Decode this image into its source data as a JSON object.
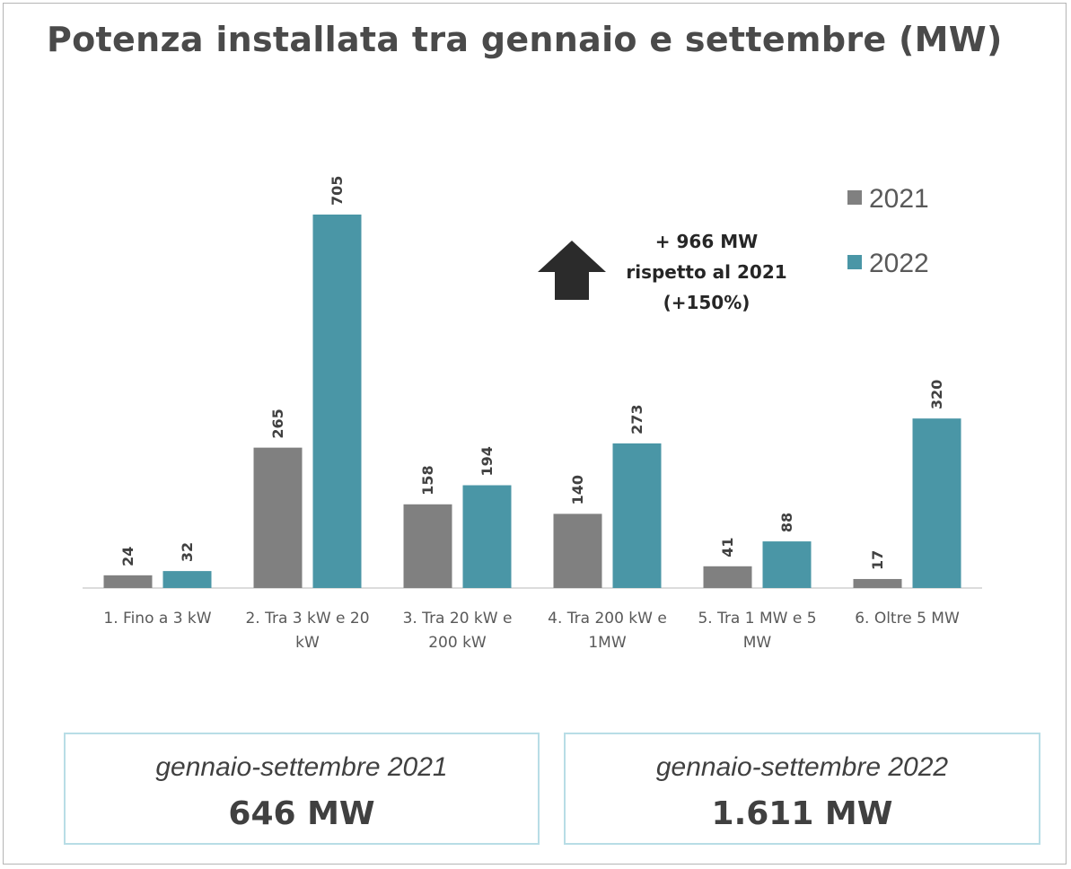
{
  "chart_data": {
    "type": "bar",
    "title": "Potenza installata tra gennaio e settembre (MW)",
    "xlabel": "",
    "ylabel": "",
    "ylim": [
      0,
      705
    ],
    "grid": false,
    "legend_position": "top-right",
    "categories": [
      [
        "1. Fino a 3 kW"
      ],
      [
        "2. Tra 3 kW e 20",
        "kW"
      ],
      [
        "3. Tra 20 kW e",
        "200 kW"
      ],
      [
        "4. Tra 200 kW e",
        "1MW"
      ],
      [
        "5. Tra 1 MW e 5",
        "MW"
      ],
      [
        "6. Oltre 5 MW"
      ]
    ],
    "series": [
      {
        "name": "2021",
        "color": "#808080",
        "values": [
          24,
          265,
          158,
          140,
          41,
          17
        ]
      },
      {
        "name": "2022",
        "color": "#4a96a6",
        "values": [
          32,
          705,
          194,
          273,
          88,
          320
        ]
      }
    ],
    "annotation": {
      "lines": [
        "+ 966 MW",
        "rispetto al 2021",
        "(+150%)"
      ],
      "arrow": "up-arrow-icon",
      "arrow_color": "#2b2b2b"
    }
  },
  "summary": [
    {
      "period": "gennaio-settembre 2021",
      "value": "646 MW"
    },
    {
      "period": "gennaio-settembre 2022",
      "value": "1.611 MW"
    }
  ]
}
